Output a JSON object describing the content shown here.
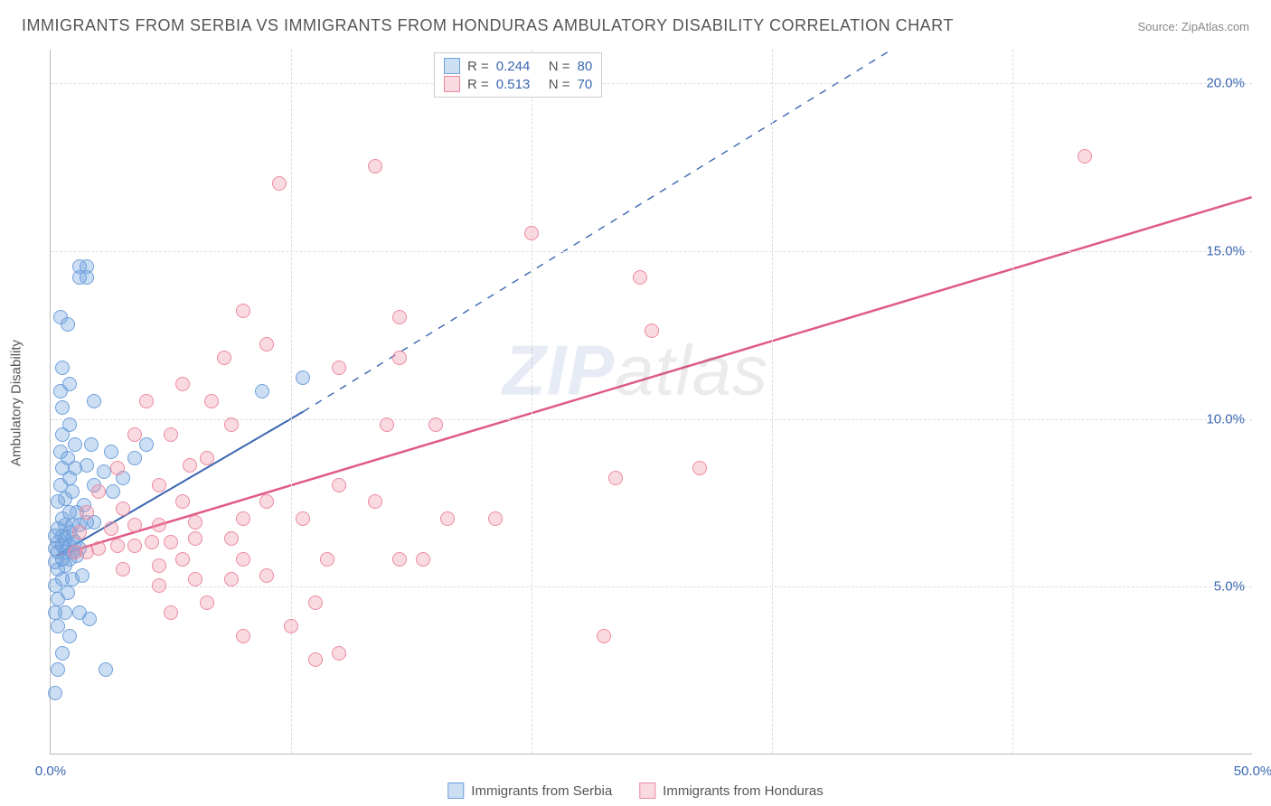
{
  "title": "IMMIGRANTS FROM SERBIA VS IMMIGRANTS FROM HONDURAS AMBULATORY DISABILITY CORRELATION CHART",
  "source": "Source: ZipAtlas.com",
  "ylabel": "Ambulatory Disability",
  "watermark": {
    "zip": "ZIP",
    "atlas": "atlas"
  },
  "chart": {
    "type": "scatter",
    "xlim": [
      0,
      50
    ],
    "ylim": [
      0,
      21
    ],
    "xticks": [
      {
        "value": 0,
        "label": "0.0%"
      },
      {
        "value": 10,
        "label": ""
      },
      {
        "value": 20,
        "label": ""
      },
      {
        "value": 30,
        "label": ""
      },
      {
        "value": 40,
        "label": ""
      },
      {
        "value": 50,
        "label": "50.0%"
      }
    ],
    "yticks": [
      {
        "value": 5,
        "label": "5.0%"
      },
      {
        "value": 10,
        "label": "10.0%"
      },
      {
        "value": 15,
        "label": "15.0%"
      },
      {
        "value": 20,
        "label": "20.0%"
      }
    ],
    "grid_color": "#dddddd",
    "background_color": "#ffffff",
    "tick_label_color": "#3a66b0",
    "point_radius": 8,
    "point_stroke_width": 1
  },
  "series": [
    {
      "id": "serbia",
      "name": "Immigrants from Serbia",
      "color_fill": "rgba(110,160,220,0.35)",
      "color_stroke": "#6fa0dc",
      "r_label": "R =",
      "r_value": "0.244",
      "n_label": "N =",
      "n_value": "80",
      "trend": {
        "solid": {
          "x1": 0.2,
          "y1": 5.9,
          "x2": 10.5,
          "y2": 10.2
        },
        "dashed": {
          "x1": 10.5,
          "y1": 10.2,
          "x2": 35,
          "y2": 21
        },
        "stroke": "#3a66b0",
        "width": 2
      },
      "points": [
        [
          0.2,
          1.8
        ],
        [
          0.3,
          2.5
        ],
        [
          2.3,
          2.5
        ],
        [
          0.5,
          3.0
        ],
        [
          0.8,
          3.5
        ],
        [
          0.3,
          3.8
        ],
        [
          0.2,
          4.2
        ],
        [
          0.6,
          4.2
        ],
        [
          1.2,
          4.2
        ],
        [
          1.6,
          4.0
        ],
        [
          0.3,
          4.6
        ],
        [
          0.7,
          4.8
        ],
        [
          0.2,
          5.0
        ],
        [
          0.5,
          5.2
        ],
        [
          0.9,
          5.2
        ],
        [
          1.3,
          5.3
        ],
        [
          0.3,
          5.5
        ],
        [
          0.6,
          5.6
        ],
        [
          0.2,
          5.7
        ],
        [
          0.5,
          5.8
        ],
        [
          0.8,
          5.8
        ],
        [
          1.1,
          5.9
        ],
        [
          0.3,
          6.0
        ],
        [
          0.6,
          6.0
        ],
        [
          0.9,
          6.0
        ],
        [
          1.2,
          6.1
        ],
        [
          0.2,
          6.1
        ],
        [
          0.5,
          6.2
        ],
        [
          0.8,
          6.2
        ],
        [
          1.0,
          6.3
        ],
        [
          0.3,
          6.3
        ],
        [
          0.6,
          6.4
        ],
        [
          0.9,
          6.4
        ],
        [
          0.2,
          6.5
        ],
        [
          0.5,
          6.5
        ],
        [
          0.8,
          6.6
        ],
        [
          0.3,
          6.7
        ],
        [
          0.6,
          6.8
        ],
        [
          0.9,
          6.8
        ],
        [
          1.2,
          6.8
        ],
        [
          1.5,
          6.9
        ],
        [
          1.8,
          6.9
        ],
        [
          0.5,
          7.0
        ],
        [
          0.8,
          7.2
        ],
        [
          1.1,
          7.2
        ],
        [
          1.4,
          7.4
        ],
        [
          0.3,
          7.5
        ],
        [
          0.6,
          7.6
        ],
        [
          0.9,
          7.8
        ],
        [
          2.6,
          7.8
        ],
        [
          0.4,
          8.0
        ],
        [
          0.8,
          8.2
        ],
        [
          1.8,
          8.0
        ],
        [
          3.0,
          8.2
        ],
        [
          0.5,
          8.5
        ],
        [
          1.0,
          8.5
        ],
        [
          1.5,
          8.6
        ],
        [
          2.2,
          8.4
        ],
        [
          3.5,
          8.8
        ],
        [
          0.7,
          8.8
        ],
        [
          0.4,
          9.0
        ],
        [
          1.0,
          9.2
        ],
        [
          1.7,
          9.2
        ],
        [
          2.5,
          9.0
        ],
        [
          4.0,
          9.2
        ],
        [
          0.5,
          9.5
        ],
        [
          0.8,
          9.8
        ],
        [
          0.5,
          10.3
        ],
        [
          1.8,
          10.5
        ],
        [
          0.4,
          10.8
        ],
        [
          8.8,
          10.8
        ],
        [
          0.8,
          11.0
        ],
        [
          10.5,
          11.2
        ],
        [
          0.5,
          11.5
        ],
        [
          0.7,
          12.8
        ],
        [
          0.4,
          13.0
        ],
        [
          1.2,
          14.2
        ],
        [
          1.2,
          14.5
        ],
        [
          1.5,
          14.5
        ],
        [
          1.5,
          14.2
        ]
      ]
    },
    {
      "id": "honduras",
      "name": "Immigrants from Honduras",
      "color_fill": "rgba(240,150,170,0.35)",
      "color_stroke": "#ec8aa0",
      "r_label": "R =",
      "r_value": "0.513",
      "n_label": "N =",
      "n_value": "70",
      "trend": {
        "solid": {
          "x1": 0.2,
          "y1": 5.9,
          "x2": 50,
          "y2": 16.6
        },
        "stroke": "#e05a87",
        "width": 2.5
      },
      "points": [
        [
          11.0,
          2.8
        ],
        [
          12.0,
          3.0
        ],
        [
          8.0,
          3.5
        ],
        [
          23.0,
          3.5
        ],
        [
          10.0,
          3.8
        ],
        [
          5.0,
          4.2
        ],
        [
          6.5,
          4.5
        ],
        [
          11.0,
          4.5
        ],
        [
          4.5,
          5.0
        ],
        [
          6.0,
          5.2
        ],
        [
          7.5,
          5.2
        ],
        [
          9.0,
          5.3
        ],
        [
          3.0,
          5.5
        ],
        [
          4.5,
          5.6
        ],
        [
          5.5,
          5.8
        ],
        [
          8.0,
          5.8
        ],
        [
          11.5,
          5.8
        ],
        [
          14.5,
          5.8
        ],
        [
          1.0,
          6.0
        ],
        [
          1.5,
          6.0
        ],
        [
          2.0,
          6.1
        ],
        [
          2.8,
          6.2
        ],
        [
          3.5,
          6.2
        ],
        [
          4.2,
          6.3
        ],
        [
          5.0,
          6.3
        ],
        [
          6.0,
          6.4
        ],
        [
          7.5,
          6.4
        ],
        [
          15.5,
          5.8
        ],
        [
          1.2,
          6.6
        ],
        [
          2.5,
          6.7
        ],
        [
          3.5,
          6.8
        ],
        [
          4.5,
          6.8
        ],
        [
          6.0,
          6.9
        ],
        [
          8.0,
          7.0
        ],
        [
          10.5,
          7.0
        ],
        [
          1.5,
          7.2
        ],
        [
          3.0,
          7.3
        ],
        [
          5.5,
          7.5
        ],
        [
          9.0,
          7.5
        ],
        [
          13.5,
          7.5
        ],
        [
          16.5,
          7.0
        ],
        [
          18.5,
          7.0
        ],
        [
          2.0,
          7.8
        ],
        [
          4.5,
          8.0
        ],
        [
          12.0,
          8.0
        ],
        [
          23.5,
          8.2
        ],
        [
          2.8,
          8.5
        ],
        [
          5.8,
          8.6
        ],
        [
          6.5,
          8.8
        ],
        [
          3.5,
          9.5
        ],
        [
          5.0,
          9.5
        ],
        [
          7.5,
          9.8
        ],
        [
          14.0,
          9.8
        ],
        [
          16.0,
          9.8
        ],
        [
          4.0,
          10.5
        ],
        [
          6.7,
          10.5
        ],
        [
          5.5,
          11.0
        ],
        [
          12.0,
          11.5
        ],
        [
          14.5,
          11.8
        ],
        [
          7.2,
          11.8
        ],
        [
          9.0,
          12.2
        ],
        [
          8.0,
          13.2
        ],
        [
          25.0,
          12.6
        ],
        [
          14.5,
          13.0
        ],
        [
          24.5,
          14.2
        ],
        [
          20.0,
          15.5
        ],
        [
          9.5,
          17.0
        ],
        [
          13.5,
          17.5
        ],
        [
          43.0,
          17.8
        ],
        [
          27.0,
          8.5
        ]
      ]
    }
  ],
  "legend_bottom": [
    {
      "series": "serbia"
    },
    {
      "series": "honduras"
    }
  ]
}
